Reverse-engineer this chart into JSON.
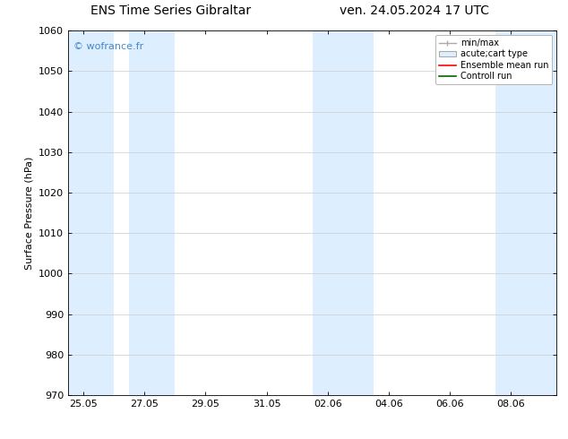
{
  "title_left": "ENS Time Series Gibraltar",
  "title_right": "ven. 24.05.2024 17 UTC",
  "ylabel": "Surface Pressure (hPa)",
  "ylim": [
    970,
    1060
  ],
  "yticks": [
    970,
    980,
    990,
    1000,
    1010,
    1020,
    1030,
    1040,
    1050,
    1060
  ],
  "xtick_labels": [
    "25.05",
    "27.05",
    "29.05",
    "31.05",
    "02.06",
    "04.06",
    "06.06",
    "08.06"
  ],
  "xtick_positions": [
    0,
    2,
    4,
    6,
    8,
    10,
    12,
    14
  ],
  "xlim": [
    -0.5,
    15.5
  ],
  "watermark": "© wofrance.fr",
  "watermark_color": "#4488cc",
  "bg_color": "#ffffff",
  "shaded_bands": [
    {
      "xstart": -0.5,
      "xend": 1.0,
      "color": "#ddeeff"
    },
    {
      "xstart": 1.5,
      "xend": 3.0,
      "color": "#ddeeff"
    },
    {
      "xstart": 7.5,
      "xend": 9.5,
      "color": "#ddeeff"
    },
    {
      "xstart": 13.5,
      "xend": 15.5,
      "color": "#ddeeff"
    }
  ],
  "legend_entries": [
    {
      "label": "min/max",
      "type": "errorbar",
      "color": "#aaaaaa"
    },
    {
      "label": "acute;cart type",
      "type": "bar",
      "color": "#c8dff0"
    },
    {
      "label": "Ensemble mean run",
      "type": "line",
      "color": "#ff0000"
    },
    {
      "label": "Controll run",
      "type": "line",
      "color": "#008800"
    }
  ],
  "font_size_title": 10,
  "font_size_labels": 8,
  "font_size_watermark": 8,
  "font_size_legend": 7
}
